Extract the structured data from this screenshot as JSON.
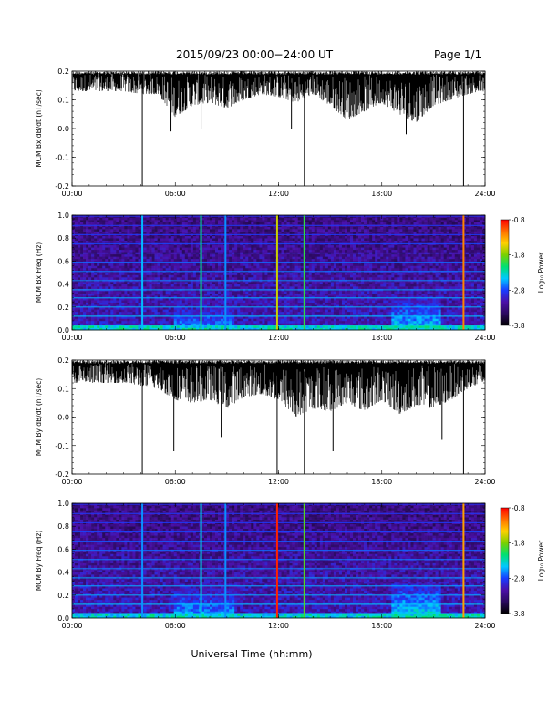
{
  "header": {
    "date_range": "2015/09/23  00:00−24:00 UT",
    "page": "Page 1/1"
  },
  "footer": {
    "xlabel": "Universal Time (hh:mm)"
  },
  "colors": {
    "background": "#ffffff",
    "trace": "#000000",
    "colormap": [
      "#000000",
      "#2a0a5e",
      "#4b10a8",
      "#1a3cff",
      "#00c8ff",
      "#00e070",
      "#7ad000",
      "#ffd000",
      "#ff7000",
      "#ff0000"
    ]
  },
  "chart_data": [
    {
      "type": "line",
      "ylabel": "MCM Bx dB/dt (nT/sec)",
      "xlim": [
        "00:00",
        "24:00"
      ],
      "xticks": [
        "00:00",
        "06:00",
        "12:00",
        "18:00",
        "24:00"
      ],
      "ylim": [
        -0.2,
        0.2
      ],
      "yticks": [
        "-0.2",
        "-0.1",
        "0.0",
        "0.1",
        "0.2"
      ],
      "series": [
        {
          "x": [
            "00:00",
            "01:00",
            "02:00",
            "03:00",
            "04:00",
            "05:00",
            "06:00",
            "07:00",
            "08:00",
            "09:00",
            "10:00",
            "11:00",
            "12:00",
            "13:00",
            "14:00",
            "15:00",
            "16:00",
            "17:00",
            "18:00",
            "19:00",
            "20:00",
            "21:00",
            "22:00",
            "23:00",
            "24:00"
          ],
          "upper": [
            0.2,
            0.2,
            0.2,
            0.2,
            0.2,
            0.2,
            0.2,
            0.2,
            0.2,
            0.2,
            0.2,
            0.2,
            0.2,
            0.2,
            0.2,
            0.2,
            0.2,
            0.2,
            0.2,
            0.2,
            0.2,
            0.2,
            0.2,
            0.2,
            0.2
          ],
          "lower": [
            0.13,
            0.13,
            0.13,
            0.13,
            0.12,
            0.12,
            0.04,
            0.08,
            0.09,
            0.07,
            0.1,
            0.12,
            0.11,
            0.09,
            0.12,
            0.08,
            0.03,
            0.06,
            0.09,
            0.05,
            0.02,
            0.08,
            0.1,
            0.12,
            0.13
          ]
        }
      ],
      "spikes": [
        {
          "x": "04:05",
          "y": -0.2
        },
        {
          "x": "05:45",
          "y": -0.01
        },
        {
          "x": "07:30",
          "y": 0.0
        },
        {
          "x": "12:45",
          "y": 0.0
        },
        {
          "x": "13:30",
          "y": -0.2
        },
        {
          "x": "19:25",
          "y": -0.02
        },
        {
          "x": "22:45",
          "y": -0.2
        }
      ]
    },
    {
      "type": "heatmap",
      "ylabel": "MCM Bx Freq (Hz)",
      "colorbar_label": "Log₁₀ Power",
      "xlim": [
        "00:00",
        "24:00"
      ],
      "xticks": [
        "00:00",
        "06:00",
        "12:00",
        "18:00",
        "24:00"
      ],
      "ylim": [
        0.0,
        1.0
      ],
      "yticks": [
        "0.0",
        "0.2",
        "0.4",
        "0.6",
        "0.8",
        "1.0"
      ],
      "clim": [
        -3.8,
        -0.8
      ],
      "cticks": [
        "-0.8",
        "-1.8",
        "-2.8",
        "-3.8"
      ],
      "harmonic_lines_hz": [
        0.04,
        0.12,
        0.2,
        0.28,
        0.35,
        0.43,
        0.51,
        0.59,
        0.67,
        0.75,
        0.83,
        0.91,
        0.99
      ],
      "vertical_events": [
        {
          "x": "04:05",
          "level": -2.5
        },
        {
          "x": "07:30",
          "level": -2.2
        },
        {
          "x": "08:55",
          "level": -2.6
        },
        {
          "x": "11:55",
          "level": -1.6
        },
        {
          "x": "13:30",
          "level": -2.0
        },
        {
          "x": "22:45",
          "level": -1.2
        }
      ],
      "low_freq_enhancement": [
        {
          "from": "06:00",
          "to": "09:30",
          "level": -2.4
        },
        {
          "from": "18:30",
          "to": "21:30",
          "level": -2.2
        }
      ]
    },
    {
      "type": "line",
      "ylabel": "MCM By dB/dt (nT/sec)",
      "xlim": [
        "00:00",
        "24:00"
      ],
      "xticks": [
        "00:00",
        "06:00",
        "12:00",
        "18:00",
        "24:00"
      ],
      "ylim": [
        -0.2,
        0.2
      ],
      "yticks": [
        "-0.2",
        "-0.1",
        "0.0",
        "0.1",
        "0.2"
      ],
      "series": [
        {
          "x": [
            "00:00",
            "01:00",
            "02:00",
            "03:00",
            "04:00",
            "05:00",
            "06:00",
            "07:00",
            "08:00",
            "09:00",
            "10:00",
            "11:00",
            "12:00",
            "13:00",
            "14:00",
            "15:00",
            "16:00",
            "17:00",
            "18:00",
            "19:00",
            "20:00",
            "21:00",
            "22:00",
            "23:00",
            "24:00"
          ],
          "upper": [
            0.2,
            0.2,
            0.2,
            0.2,
            0.2,
            0.2,
            0.2,
            0.2,
            0.2,
            0.2,
            0.2,
            0.2,
            0.2,
            0.2,
            0.2,
            0.2,
            0.2,
            0.2,
            0.2,
            0.2,
            0.2,
            0.2,
            0.2,
            0.2,
            0.2
          ],
          "lower": [
            0.12,
            0.12,
            0.12,
            0.12,
            0.11,
            0.1,
            0.06,
            0.05,
            0.06,
            0.03,
            0.07,
            0.08,
            0.06,
            0.0,
            0.03,
            0.02,
            0.05,
            0.02,
            0.06,
            0.01,
            0.04,
            0.03,
            0.06,
            0.1,
            0.12
          ]
        }
      ],
      "spikes": [
        {
          "x": "04:05",
          "y": -0.2
        },
        {
          "x": "05:55",
          "y": -0.12
        },
        {
          "x": "08:40",
          "y": -0.07
        },
        {
          "x": "11:55",
          "y": -0.2
        },
        {
          "x": "13:30",
          "y": -0.2
        },
        {
          "x": "15:10",
          "y": -0.12
        },
        {
          "x": "21:30",
          "y": -0.08
        },
        {
          "x": "22:45",
          "y": -0.2
        }
      ]
    },
    {
      "type": "heatmap",
      "ylabel": "MCM By Freq (Hz)",
      "colorbar_label": "Log₁₀ Power",
      "xlim": [
        "00:00",
        "24:00"
      ],
      "xticks": [
        "00:00",
        "06:00",
        "12:00",
        "18:00",
        "24:00"
      ],
      "ylim": [
        0.0,
        1.0
      ],
      "yticks": [
        "0.0",
        "0.2",
        "0.4",
        "0.6",
        "0.8",
        "1.0"
      ],
      "clim": [
        -3.8,
        -0.8
      ],
      "cticks": [
        "-0.8",
        "-1.8",
        "-2.8",
        "-3.8"
      ],
      "harmonic_lines_hz": [
        0.04,
        0.12,
        0.2,
        0.28,
        0.35,
        0.43,
        0.51,
        0.59,
        0.67,
        0.75,
        0.83,
        0.91,
        0.99
      ],
      "vertical_events": [
        {
          "x": "04:05",
          "level": -2.6
        },
        {
          "x": "07:30",
          "level": -2.4
        },
        {
          "x": "08:55",
          "level": -2.6
        },
        {
          "x": "11:55",
          "level": -0.9
        },
        {
          "x": "13:30",
          "level": -1.9
        },
        {
          "x": "22:45",
          "level": -1.3
        }
      ],
      "low_freq_enhancement": [
        {
          "from": "06:00",
          "to": "09:30",
          "level": -2.3
        },
        {
          "from": "18:30",
          "to": "21:30",
          "level": -2.1
        }
      ]
    }
  ]
}
